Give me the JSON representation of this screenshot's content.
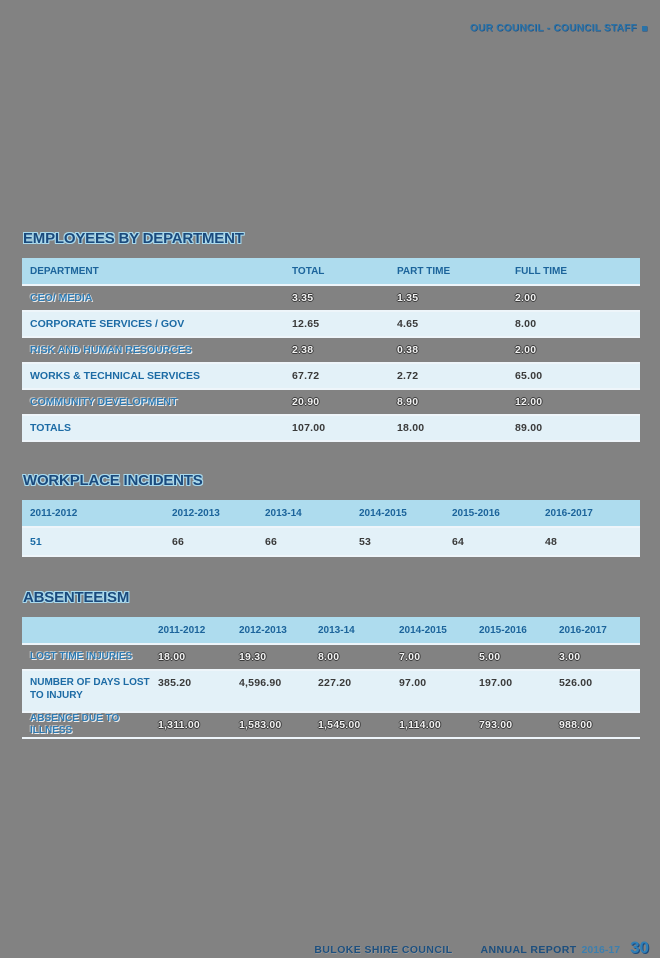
{
  "page": {
    "header_right": {
      "text": "OUR COUNCIL - COUNCIL STAFF"
    },
    "footer": {
      "council": "BULOKE SHIRE COUNCIL",
      "report": "ANNUAL REPORT",
      "year": "2016-17",
      "page_number": "30"
    }
  },
  "colors": {
    "page_bg": "#828282",
    "table_header_bg": "#aedcee",
    "row_light_bg": "#e3f1f8",
    "accent_blue": "#1c6ba5",
    "title_navy": "#1a4a7d",
    "title_outline": "#a9d9ec"
  },
  "employees": {
    "title": "EMPLOYEES BY DEPARTMENT",
    "columns": [
      "DEPARTMENT",
      "TOTAL",
      "PART TIME",
      "FULL TIME"
    ],
    "rows": [
      {
        "label": "CEO/ MEDIA",
        "total": "3.35",
        "part_time": "1.35",
        "full_time": "2.00"
      },
      {
        "label": "CORPORATE SERVICES / GOV",
        "total": "12.65",
        "part_time": "4.65",
        "full_time": "8.00"
      },
      {
        "label": "RISK AND HUMAN RESOURCES",
        "total": "2.38",
        "part_time": "0.38",
        "full_time": "2.00"
      },
      {
        "label": "WORKS & TECHNICAL SERVICES",
        "total": "67.72",
        "part_time": "2.72",
        "full_time": "65.00"
      },
      {
        "label": "COMMUNITY DEVELOPMENT",
        "total": "20.90",
        "part_time": "8.90",
        "full_time": "12.00"
      },
      {
        "label": "TOTALS",
        "total": "107.00",
        "part_time": "18.00",
        "full_time": "89.00"
      }
    ]
  },
  "incidents": {
    "title": "WORKPLACE INCIDENTS",
    "columns": [
      "2011-2012",
      "2012-2013",
      "2013-14",
      "2014-2015",
      "2015-2016",
      "2016-2017"
    ],
    "values": [
      "51",
      "66",
      "66",
      "53",
      "64",
      "48"
    ]
  },
  "absenteeism": {
    "title": "ABSENTEEISM",
    "columns": [
      "2011-2012",
      "2012-2013",
      "2013-14",
      "2014-2015",
      "2015-2016",
      "2016-2017"
    ],
    "rows": [
      {
        "label": "LOST TIME INJURIES",
        "values": [
          "18.00",
          "19.30",
          "8.00",
          "7.00",
          "5.00",
          "3.00"
        ]
      },
      {
        "label": "NUMBER OF DAYS LOST TO INJURY",
        "values": [
          "385.20",
          "4,596.90",
          "227.20",
          "97.00",
          "197.00",
          "526.00"
        ]
      },
      {
        "label": "ABSENCE DUE TO ILLNESS",
        "values": [
          "1,311.00",
          "1,583.00",
          "1,545.00",
          "1,114.00",
          "793.00",
          "988.00"
        ]
      }
    ]
  }
}
